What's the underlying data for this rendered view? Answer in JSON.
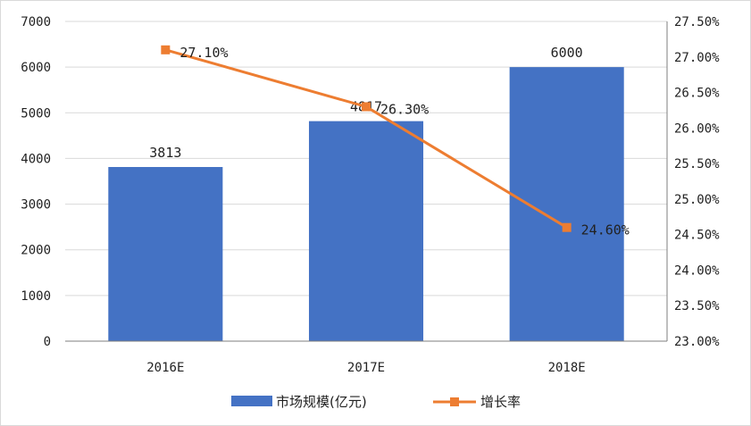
{
  "chart_data": {
    "type": "bar",
    "categories": [
      "2016E",
      "2017E",
      "2018E"
    ],
    "series": [
      {
        "name": "市场规模(亿元)",
        "type": "bar",
        "axis": "left",
        "values": [
          3813,
          4817,
          6000
        ],
        "labels": [
          "3813",
          "4817",
          "6000"
        ],
        "color": "#4472c4"
      },
      {
        "name": "增长率",
        "type": "line",
        "axis": "right",
        "values": [
          27.1,
          26.3,
          24.6
        ],
        "labels": [
          "27.10%",
          "26.30%",
          "24.60%"
        ],
        "color": "#ed7d31"
      }
    ],
    "y_left": {
      "min": 0,
      "max": 7000,
      "ticks": [
        0,
        1000,
        2000,
        3000,
        4000,
        5000,
        6000,
        7000
      ],
      "tick_labels": [
        "0",
        "1000",
        "2000",
        "3000",
        "4000",
        "5000",
        "6000",
        "7000"
      ]
    },
    "y_right": {
      "min": 23.0,
      "max": 27.5,
      "ticks": [
        23.0,
        23.5,
        24.0,
        24.5,
        25.0,
        25.5,
        26.0,
        26.5,
        27.0,
        27.5
      ],
      "tick_labels": [
        "23.00%",
        "23.50%",
        "24.00%",
        "24.50%",
        "25.00%",
        "25.50%",
        "26.00%",
        "26.50%",
        "27.00%",
        "27.50%"
      ]
    },
    "grid": true,
    "legend_position": "bottom",
    "gridline_color": "#d9d9d9",
    "axis_color": "#7f7f7f"
  }
}
